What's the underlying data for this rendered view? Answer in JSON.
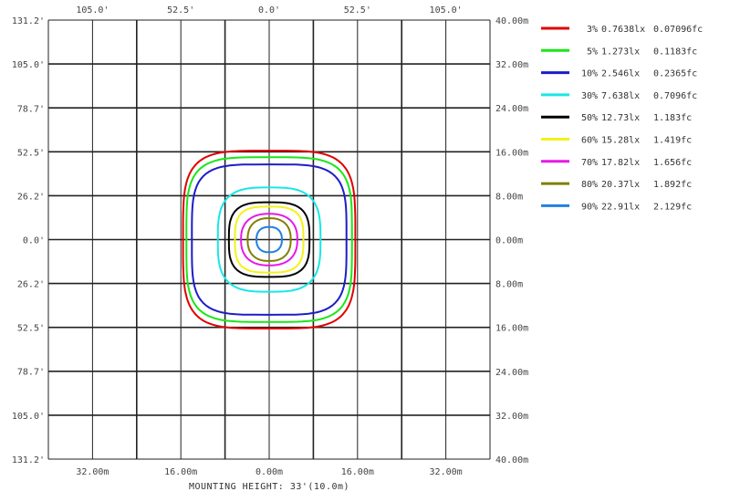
{
  "chart_data": {
    "type": "line",
    "title": "",
    "xlabel": "MOUNTING HEIGHT: 33'(10.0m)",
    "top_ticks": [
      "105.0'",
      "52.5'",
      "0.0'",
      "52.5'",
      "105.0'"
    ],
    "top_tick_values_ft": [
      -105.0,
      -52.5,
      0.0,
      52.5,
      105.0
    ],
    "bottom_ticks": [
      "32.00m",
      "16.00m",
      "0.00m",
      "16.00m",
      "32.00m"
    ],
    "bottom_tick_values_m": [
      -32,
      -16,
      0,
      16,
      32
    ],
    "left_ticks": [
      "131.2'",
      "105.0'",
      "78.7'",
      "52.5'",
      "26.2'",
      "0.0'",
      "26.2'",
      "52.5'",
      "78.7'",
      "105.0'",
      "131.2'"
    ],
    "left_tick_values_ft": [
      131.2,
      105.0,
      78.7,
      52.5,
      26.2,
      0.0,
      -26.2,
      -52.5,
      -78.7,
      -105.0,
      -131.2
    ],
    "right_ticks": [
      "40.00m",
      "32.00m",
      "24.00m",
      "16.00m",
      "8.00m",
      "0.00m",
      "8.00m",
      "16.00m",
      "24.00m",
      "32.00m",
      "40.00m"
    ],
    "right_tick_values_m": [
      40,
      32,
      24,
      16,
      8,
      0,
      -8,
      -16,
      -24,
      -32,
      -40
    ],
    "xlim_m": [
      -40,
      40
    ],
    "ylim_m": [
      -40,
      40
    ],
    "grid": true,
    "legend_position": "right",
    "series": [
      {
        "percent": "3%",
        "lux": "0.7638lx",
        "fc": "0.07096fc",
        "color": "#e00000",
        "half_width_m": 15.6,
        "half_height_m": 16.2
      },
      {
        "percent": "5%",
        "lux": "1.273lx",
        "fc": "0.1183fc",
        "color": "#19e619",
        "half_width_m": 15.0,
        "half_height_m": 15.0
      },
      {
        "percent": "10%",
        "lux": "2.546lx",
        "fc": "0.2365fc",
        "color": "#1d1dc8",
        "half_width_m": 14.0,
        "half_height_m": 13.7
      },
      {
        "percent": "30%",
        "lux": "7.638lx",
        "fc": "0.7096fc",
        "color": "#19e6e6",
        "half_width_m": 9.3,
        "half_height_m": 9.5
      },
      {
        "percent": "50%",
        "lux": "12.73lx",
        "fc": "1.183fc",
        "color": "#000000",
        "half_width_m": 7.3,
        "half_height_m": 6.8
      },
      {
        "percent": "60%",
        "lux": "15.28lx",
        "fc": "1.419fc",
        "color": "#f2f21a",
        "half_width_m": 6.2,
        "half_height_m": 6.0
      },
      {
        "percent": "70%",
        "lux": "17.82lx",
        "fc": "1.656fc",
        "color": "#e61ae6",
        "half_width_m": 5.1,
        "half_height_m": 4.7
      },
      {
        "percent": "80%",
        "lux": "20.37lx",
        "fc": "1.892fc",
        "color": "#808000",
        "half_width_m": 3.9,
        "half_height_m": 3.9
      },
      {
        "percent": "90%",
        "lux": "22.91lx",
        "fc": "2.129fc",
        "color": "#2080e0",
        "half_width_m": 2.3,
        "half_height_m": 2.3
      }
    ]
  }
}
